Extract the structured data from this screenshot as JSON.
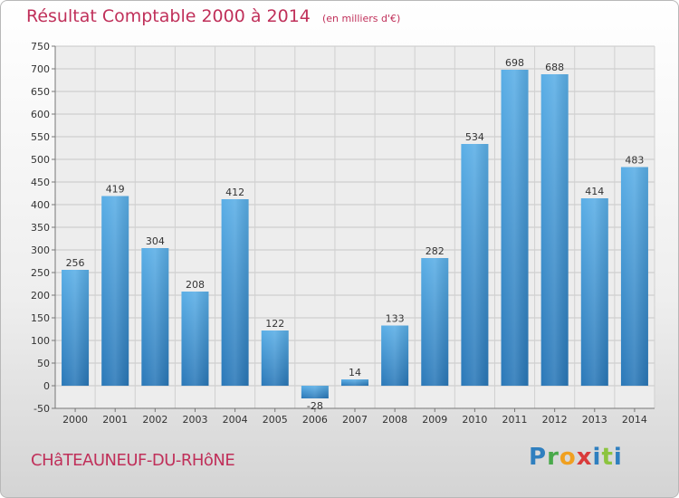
{
  "header": {
    "title": "Résultat Comptable 2000 à 2014",
    "subtitle": "(en milliers d'€)"
  },
  "footer": {
    "city": "CHâTEAUNEUF-DU-RHôNE",
    "logo": "Proxiti"
  },
  "colors": {
    "bar": "#4a9fdc",
    "bar_dark": "#2b7cc0",
    "title": "#c0305a"
  },
  "chart_data": {
    "type": "bar",
    "title": "Résultat Comptable 2000 à 2014",
    "subtitle": "(en milliers d'€)",
    "xlabel": "",
    "ylabel": "",
    "categories": [
      "2000",
      "2001",
      "2002",
      "2003",
      "2004",
      "2005",
      "2006",
      "2007",
      "2008",
      "2009",
      "2010",
      "2011",
      "2012",
      "2013",
      "2014"
    ],
    "values": [
      256,
      419,
      304,
      208,
      412,
      122,
      -28,
      14,
      133,
      282,
      534,
      698,
      688,
      414,
      483
    ],
    "ylim": [
      -50,
      750
    ],
    "yticks": [
      -50,
      0,
      50,
      100,
      150,
      200,
      250,
      300,
      350,
      400,
      450,
      500,
      550,
      600,
      650,
      700,
      750
    ],
    "grid": true,
    "legend": "none"
  }
}
